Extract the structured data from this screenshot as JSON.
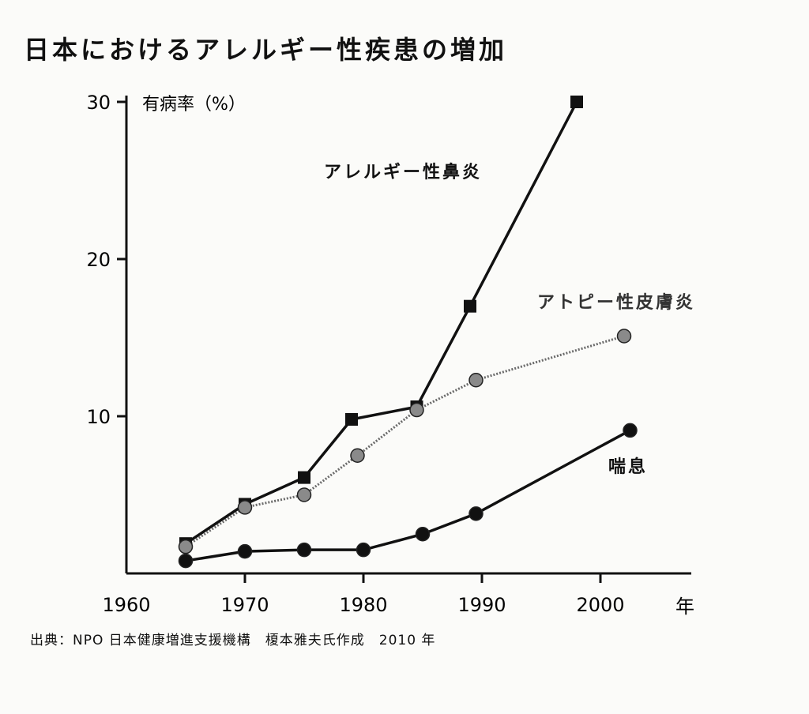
{
  "title": "日本におけるアレルギー性疾患の増加",
  "source": "出典：NPO 日本健康増進支援機構　榎本雅夫氏作成　2010 年",
  "chart_data": {
    "type": "line",
    "ylabel": "有病率（%）",
    "xlabel": "年",
    "xlim": [
      1960,
      2007
    ],
    "ylim": [
      0,
      30
    ],
    "x_ticks": [
      1960,
      1970,
      1980,
      1990,
      2000
    ],
    "y_ticks": [
      10,
      20,
      30
    ],
    "grid": false,
    "series": [
      {
        "name": "アレルギー性鼻炎",
        "marker": "square",
        "color": "#111111",
        "points": [
          [
            1965,
            1.9
          ],
          [
            1970,
            4.4
          ],
          [
            1975,
            6.1
          ],
          [
            1979,
            9.8
          ],
          [
            1984.5,
            10.6
          ],
          [
            1989,
            17.0
          ],
          [
            1998,
            30.0
          ]
        ]
      },
      {
        "name": "アトピー性皮膚炎",
        "marker": "circle",
        "color": "#8a8a8a",
        "points": [
          [
            1965,
            1.7
          ],
          [
            1970,
            4.2
          ],
          [
            1975,
            5.0
          ],
          [
            1979.5,
            7.5
          ],
          [
            1984.5,
            10.4
          ],
          [
            1989.5,
            12.3
          ],
          [
            2002,
            15.1
          ]
        ]
      },
      {
        "name": "喘息",
        "marker": "circle",
        "color": "#111111",
        "points": [
          [
            1965,
            0.8
          ],
          [
            1970,
            1.4
          ],
          [
            1975,
            1.5
          ],
          [
            1980,
            1.5
          ],
          [
            1985,
            2.5
          ],
          [
            1989.5,
            3.8
          ],
          [
            2002.5,
            9.1
          ]
        ]
      }
    ]
  }
}
